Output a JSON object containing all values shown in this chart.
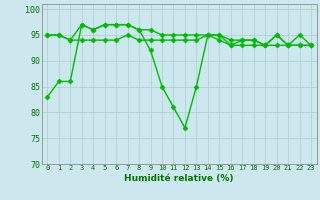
{
  "x": [
    0,
    1,
    2,
    3,
    4,
    5,
    6,
    7,
    8,
    9,
    10,
    11,
    12,
    13,
    14,
    15,
    16,
    17,
    18,
    19,
    20,
    21,
    22,
    23
  ],
  "line_top": [
    95,
    95,
    94,
    97,
    96,
    97,
    97,
    97,
    96,
    96,
    95,
    95,
    95,
    95,
    95,
    95,
    94,
    94,
    94,
    93,
    95,
    93,
    95,
    93
  ],
  "line_mid": [
    95,
    95,
    94,
    94,
    94,
    94,
    94,
    95,
    94,
    94,
    94,
    94,
    94,
    94,
    95,
    94,
    93,
    93,
    93,
    93,
    93,
    93,
    93,
    93
  ],
  "line_bot": [
    83,
    86,
    86,
    97,
    96,
    97,
    97,
    97,
    96,
    92,
    85,
    81,
    77,
    85,
    95,
    95,
    93,
    94,
    94,
    93,
    95,
    93,
    93,
    93
  ],
  "line_color": "#00bb00",
  "bg_color": "#cce8ee",
  "grid_color": "#aacccc",
  "ylim": [
    70,
    101
  ],
  "yticks": [
    70,
    75,
    80,
    85,
    90,
    95,
    100
  ],
  "xlabel": "Humidité relative (%)",
  "xlabel_color": "#007700",
  "tick_color": "#007700",
  "marker": "D",
  "markersize": 2.5,
  "linewidth": 1.0
}
